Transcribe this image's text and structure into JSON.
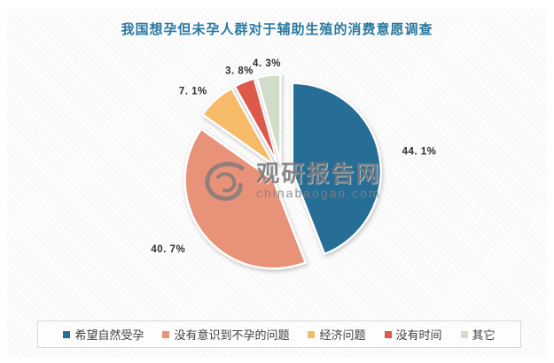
{
  "title": "我国想孕但未孕人群对于辅助生殖的消费意愿调查",
  "title_color": "#2a78a0",
  "watermark": {
    "logo": "swirl-logo",
    "name": "观研报告网",
    "domain": "chinabaogao.com"
  },
  "chart_data": {
    "type": "pie",
    "title": "我国想孕但未孕人群对于辅助生殖的消费意愿调查",
    "start_angle_deg": 0,
    "direction": "clockwise",
    "legend_position": "bottom",
    "exploded": true,
    "categories": [
      "希望自然受孕",
      "没有意识到不孕的问题",
      "经济问题",
      "没有时间",
      "其它"
    ],
    "values": [
      44.1,
      40.7,
      7.1,
      3.8,
      4.3
    ],
    "series": [
      {
        "name": "希望自然受孕",
        "value": 44.1,
        "label": "44. 1%",
        "color": "#256e96"
      },
      {
        "name": "没有意识到不孕的问题",
        "value": 40.7,
        "label": "40. 7%",
        "color": "#e8927a"
      },
      {
        "name": "经济问题",
        "value": 7.1,
        "label": "7. 1%",
        "color": "#f6ba68"
      },
      {
        "name": "没有时间",
        "value": 3.8,
        "label": "3. 8%",
        "color": "#dd5a4b"
      },
      {
        "name": "其它",
        "value": 4.3,
        "label": "4. 3%",
        "color": "#d1dcc9"
      }
    ]
  }
}
